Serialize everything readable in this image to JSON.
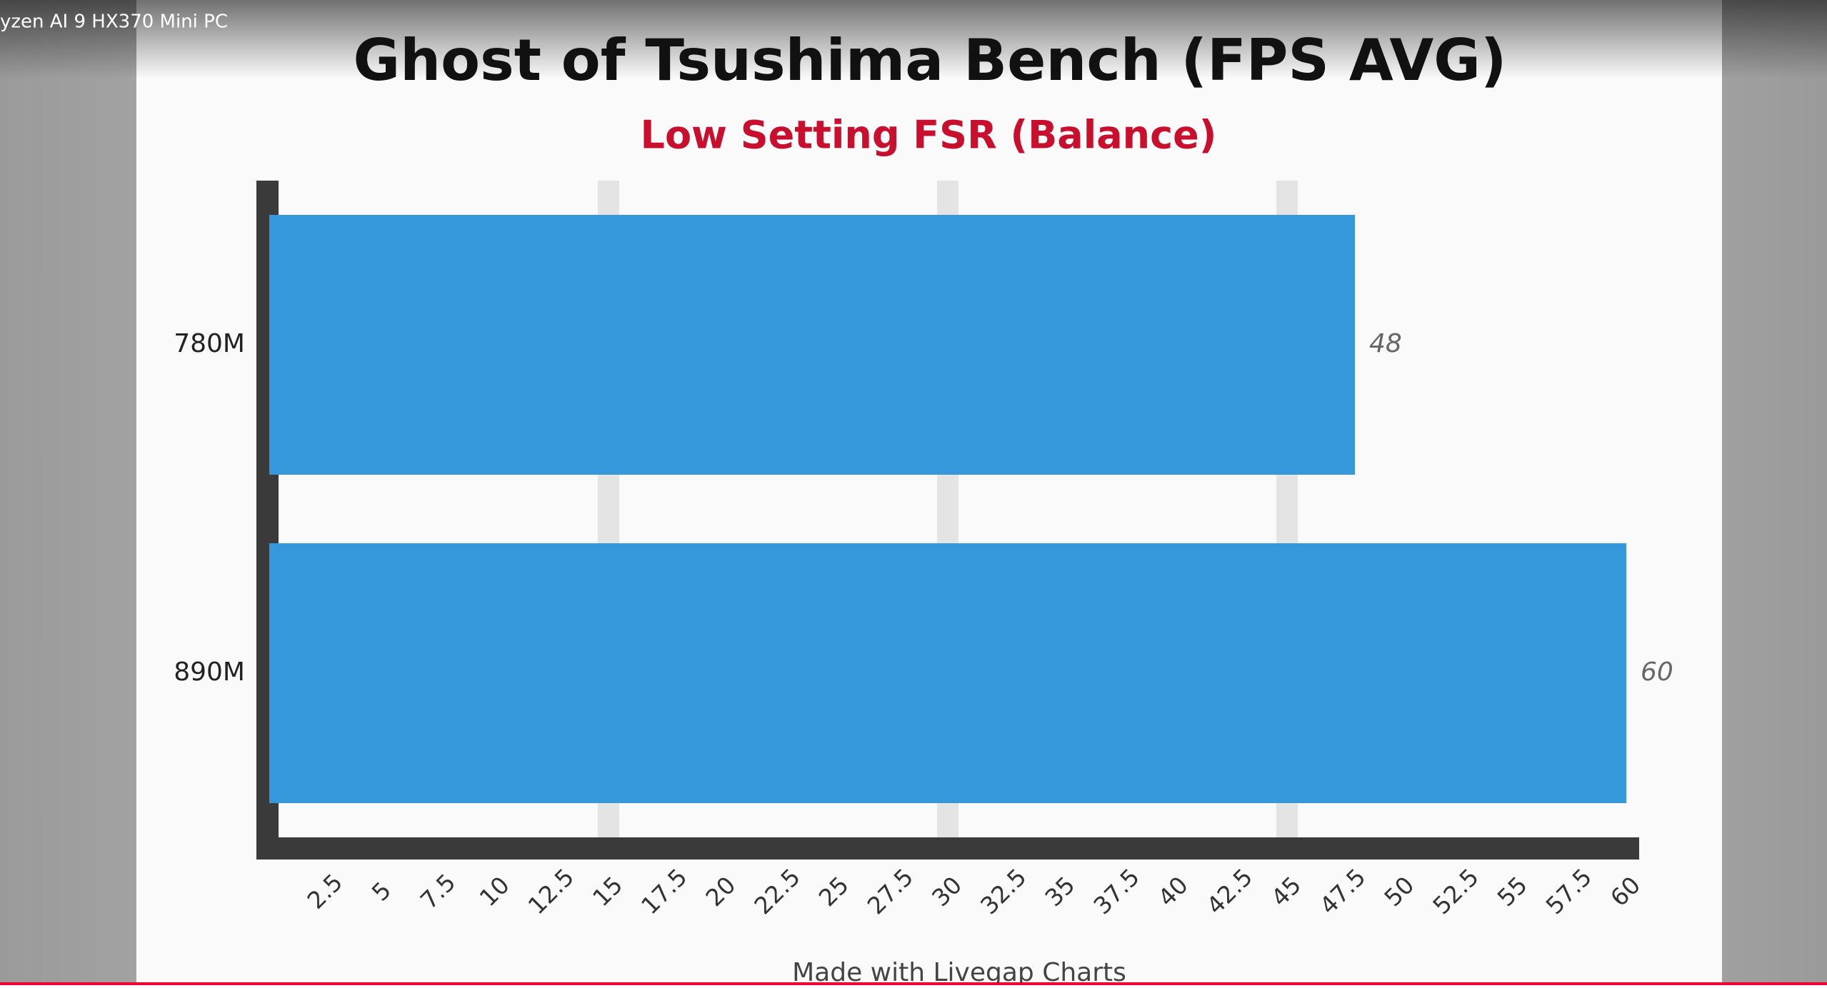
{
  "window_title": "yzen AI 9 HX370 Mini PC",
  "chart_data": {
    "type": "hbar",
    "title": "Ghost of Tsushima Bench (FPS AVG)",
    "subtitle": "Low Setting FSR (Balance)",
    "categories": [
      "780M",
      "890M"
    ],
    "values": [
      48,
      60
    ],
    "color": "#3498db",
    "xlim": [
      0,
      60
    ],
    "xticks": [
      2.5,
      5,
      7.5,
      10,
      12.5,
      15,
      17.5,
      20,
      22.5,
      25,
      27.5,
      30,
      32.5,
      35,
      37.5,
      40,
      42.5,
      45,
      47.5,
      50,
      52.5,
      55,
      57.5,
      60
    ],
    "xgrid": [
      15,
      30,
      45
    ],
    "footer": "Made with Livegap Charts"
  }
}
